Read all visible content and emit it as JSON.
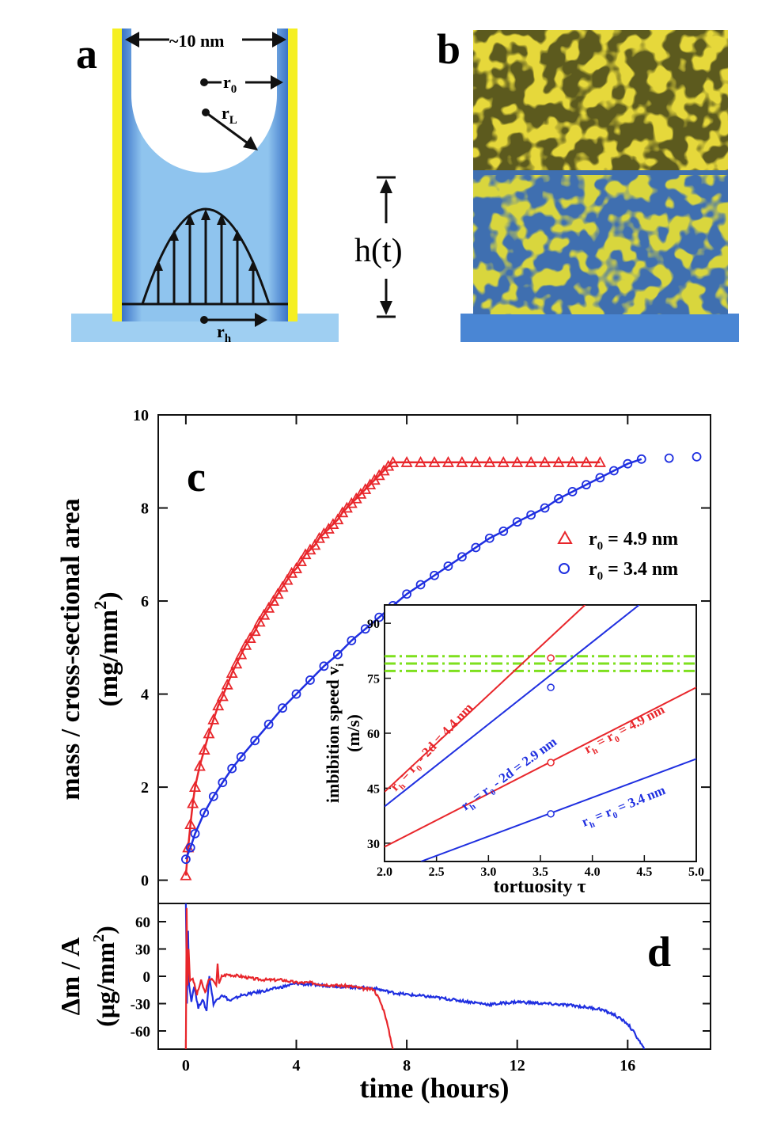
{
  "figure": {
    "panel_a": {
      "label": "a",
      "width_label": "~10 nm",
      "r0": "r",
      "r0_sub": "0",
      "rL": "r",
      "rL_sub": "L",
      "rh": "r",
      "rh_sub": "h",
      "height_label": "h(t)"
    },
    "panel_b": {
      "label": "b"
    },
    "panel_c": {
      "label": "c"
    },
    "panel_d": {
      "label": "d"
    }
  },
  "colors": {
    "red": "#e8262b",
    "blue": "#1f2fe0",
    "green": "#7ee01e",
    "fluid": "#9fcff2",
    "wall": "#f5ef22",
    "substrate": "#4a86d4"
  },
  "chart_data": [
    {
      "id": "c",
      "type": "scatter",
      "title": "",
      "xlabel": "",
      "ylabel": "mass / cross-sectional area",
      "ylabel_unit": "(mg/mm",
      "ylabel_unit_sup": "2",
      "ylabel_unit_end": ")",
      "xlim": [
        -1,
        19
      ],
      "ylim": [
        -0.5,
        10
      ],
      "yticks": [
        0,
        2,
        4,
        6,
        8,
        10
      ],
      "series": [
        {
          "name": "r0 = 4.9 nm",
          "legend_prefix": "r",
          "legend_sub": "0",
          "legend_suffix": " = 4.9 nm",
          "marker": "triangle",
          "color": "#e8262b",
          "x": [
            0,
            0.083,
            0.167,
            0.25,
            0.333,
            0.5,
            0.667,
            0.833,
            1,
            1.17,
            1.33,
            1.5,
            1.67,
            1.83,
            2,
            2.17,
            2.33,
            2.5,
            2.67,
            2.83,
            3,
            3.17,
            3.33,
            3.5,
            3.67,
            3.83,
            4,
            4.17,
            4.33,
            4.5,
            4.67,
            4.83,
            5,
            5.17,
            5.33,
            5.5,
            5.67,
            5.83,
            6,
            6.17,
            6.33,
            6.5,
            6.67,
            6.83,
            7,
            7.17,
            7.33,
            7.5,
            8,
            8.5,
            9,
            9.5,
            10,
            10.5,
            11,
            11.5,
            12,
            12.5,
            13,
            13.5,
            14,
            14.5,
            15
          ],
          "y": [
            0.1,
            0.7,
            1.2,
            1.65,
            2.0,
            2.45,
            2.8,
            3.15,
            3.45,
            3.75,
            3.95,
            4.2,
            4.45,
            4.65,
            4.85,
            5.05,
            5.2,
            5.35,
            5.55,
            5.7,
            5.85,
            6.0,
            6.15,
            6.3,
            6.45,
            6.6,
            6.7,
            6.85,
            7.0,
            7.1,
            7.2,
            7.35,
            7.45,
            7.55,
            7.65,
            7.75,
            7.9,
            8.0,
            8.1,
            8.2,
            8.3,
            8.4,
            8.5,
            8.6,
            8.7,
            8.8,
            8.9,
            8.98,
            8.98,
            8.98,
            8.98,
            8.98,
            8.98,
            8.98,
            8.98,
            8.98,
            8.98,
            8.98,
            8.98,
            8.98,
            8.98,
            8.98,
            8.98
          ]
        },
        {
          "name": "r0 = 3.4 nm",
          "legend_prefix": "r",
          "legend_sub": "0",
          "legend_suffix": " = 3.4 nm",
          "marker": "circle",
          "color": "#1f2fe0",
          "x": [
            0,
            0.167,
            0.333,
            0.667,
            1,
            1.33,
            1.67,
            2,
            2.5,
            3,
            3.5,
            4,
            4.5,
            5,
            5.5,
            6,
            6.5,
            7,
            7.5,
            8,
            8.5,
            9,
            9.5,
            10,
            10.5,
            11,
            11.5,
            12,
            12.5,
            13,
            13.5,
            14,
            14.5,
            15,
            15.5,
            16,
            16.5,
            17.5,
            18.5
          ],
          "y": [
            0.45,
            0.7,
            1.0,
            1.45,
            1.8,
            2.1,
            2.4,
            2.65,
            3.0,
            3.35,
            3.7,
            4.0,
            4.3,
            4.6,
            4.85,
            5.15,
            5.4,
            5.65,
            5.9,
            6.15,
            6.35,
            6.55,
            6.75,
            6.95,
            7.15,
            7.35,
            7.5,
            7.7,
            7.85,
            8.0,
            8.2,
            8.35,
            8.5,
            8.65,
            8.8,
            8.95,
            9.05,
            9.07,
            9.1
          ]
        }
      ]
    },
    {
      "id": "c-inset",
      "type": "line",
      "xlabel": "tortuosity",
      "xlabel_symbol": "τ",
      "ylabel": "imbibition speed v",
      "ylabel_sub": "i",
      "ylabel_unit": "(m/s)",
      "xlim": [
        2.0,
        5.0
      ],
      "ylim": [
        25,
        95
      ],
      "xticks": [
        2.0,
        2.5,
        3.0,
        3.5,
        4.0,
        4.5,
        5.0
      ],
      "yticks": [
        30,
        45,
        60,
        75,
        90
      ],
      "series": [
        {
          "name": "rh = r0 - 2d = 4.4 nm",
          "label_main": "r",
          "label_sub1": "h",
          "label_mid": " = r",
          "label_sub2": "0",
          "label_end": " - 2d = 4.4 nm",
          "color": "#e8262b",
          "x": [
            2.0,
            3.93
          ],
          "y": [
            44,
            95
          ],
          "marker_x": 3.6,
          "marker_y": 80.5
        },
        {
          "name": "rh = r0 - 2d = 2.9 nm",
          "label_main": "r",
          "label_sub1": "h",
          "label_mid": " = r",
          "label_sub2": "0",
          "label_end": " - 2d = 2.9 nm",
          "color": "#1f2fe0",
          "x": [
            2.0,
            4.45
          ],
          "y": [
            40,
            95
          ],
          "marker_x": 3.6,
          "marker_y": 72.5
        },
        {
          "name": "rh = r0 = 4.9 nm",
          "label_main": "r",
          "label_sub1": "h",
          "label_mid": " = r",
          "label_sub2": "0",
          "label_end": " = 4.9 nm",
          "color": "#e8262b",
          "x": [
            2.0,
            5.0
          ],
          "y": [
            29,
            72.5
          ],
          "marker_x": 3.6,
          "marker_y": 52
        },
        {
          "name": "rh = r0 = 3.4 nm",
          "label_main": "r",
          "label_sub1": "h",
          "label_mid": " = r",
          "label_sub2": "0",
          "label_end": " = 3.4 nm",
          "color": "#1f2fe0",
          "x": [
            2.35,
            5.0
          ],
          "y": [
            25,
            53
          ],
          "marker_x": 3.6,
          "marker_y": 38
        }
      ],
      "hlines": {
        "values": [
          81,
          79,
          77
        ],
        "color": "#7ee01e",
        "style": "dash-dot"
      }
    },
    {
      "id": "d",
      "type": "line",
      "xlabel": "time (hours)",
      "ylabel": "Δm / A",
      "ylabel_unit": "(μg/mm",
      "ylabel_unit_sup": "2",
      "ylabel_unit_end": ")",
      "xlim": [
        -1,
        19
      ],
      "ylim": [
        -80,
        80
      ],
      "xticks": [
        0,
        4,
        8,
        12,
        16
      ],
      "yticks": [
        60,
        30,
        0,
        -30,
        -60
      ],
      "series": [
        {
          "name": "red",
          "color": "#e8262b",
          "x": [
            0,
            0.03,
            0.06,
            0.1,
            0.15,
            0.25,
            0.4,
            0.55,
            0.7,
            0.85,
            1.0,
            1.1,
            1.15,
            1.2,
            1.3,
            1.5,
            2,
            2.5,
            3,
            3.5,
            4,
            4.5,
            5,
            5.5,
            6,
            6.5,
            6.8,
            7.0,
            7.2,
            7.35,
            7.5
          ],
          "y": [
            -80,
            75,
            -10,
            30,
            -5,
            -2,
            -20,
            -5,
            -18,
            -2,
            -5,
            -10,
            14,
            -8,
            0,
            2,
            0,
            -3,
            -4,
            -4,
            -7,
            -7,
            -9,
            -10,
            -11,
            -14,
            -14,
            -25,
            -40,
            -60,
            -80
          ]
        },
        {
          "name": "blue",
          "color": "#1f2fe0",
          "x": [
            0,
            0.04,
            0.08,
            0.12,
            0.2,
            0.3,
            0.45,
            0.6,
            0.75,
            0.85,
            1.0,
            1.3,
            1.6,
            2,
            3,
            4,
            5,
            6,
            6.8,
            7.5,
            8,
            9,
            10,
            11,
            12,
            13,
            14,
            15,
            15.5,
            16,
            16.3,
            16.6
          ],
          "y": [
            80,
            -30,
            50,
            -10,
            -28,
            -10,
            -35,
            -25,
            -38,
            0,
            -30,
            -20,
            -27,
            -21,
            -15,
            -8,
            -10,
            -12,
            -13,
            -18,
            -20,
            -23,
            -27,
            -31,
            -28,
            -30,
            -32,
            -36,
            -42,
            -52,
            -65,
            -80
          ]
        }
      ]
    }
  ]
}
